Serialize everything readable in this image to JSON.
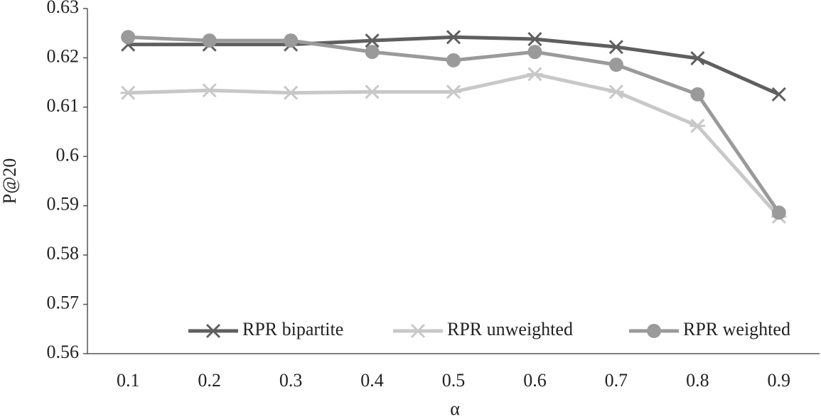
{
  "chart_data": {
    "type": "line",
    "x_label": "α",
    "y_label": "P@20",
    "categories": [
      "0.1",
      "0.2",
      "0.3",
      "0.4",
      "0.5",
      "0.6",
      "0.7",
      "0.8",
      "0.9"
    ],
    "series": [
      {
        "name": "RPR bipartite",
        "color": "#5f5f5f",
        "marker": "x",
        "values": [
          0.6227,
          0.6227,
          0.6227,
          0.6235,
          0.6242,
          0.6238,
          0.6222,
          0.6199,
          0.6126
        ]
      },
      {
        "name": "RPR unweighted",
        "color": "#c8c8c8",
        "marker": "asterisk",
        "values": [
          0.6129,
          0.6134,
          0.6129,
          0.6131,
          0.6131,
          0.6167,
          0.6131,
          0.6062,
          0.5878
        ]
      },
      {
        "name": "RPR weighted",
        "color": "#9a9a9a",
        "marker": "circle",
        "values": [
          0.6242,
          0.6235,
          0.6235,
          0.6212,
          0.6195,
          0.6212,
          0.6186,
          0.6126,
          0.5886
        ]
      }
    ],
    "ylim": [
      0.56,
      0.63
    ],
    "yticks": [
      0.56,
      0.57,
      0.58,
      0.59,
      0.6,
      0.61,
      0.62,
      0.63
    ],
    "grid": false,
    "legend": "lower right"
  }
}
